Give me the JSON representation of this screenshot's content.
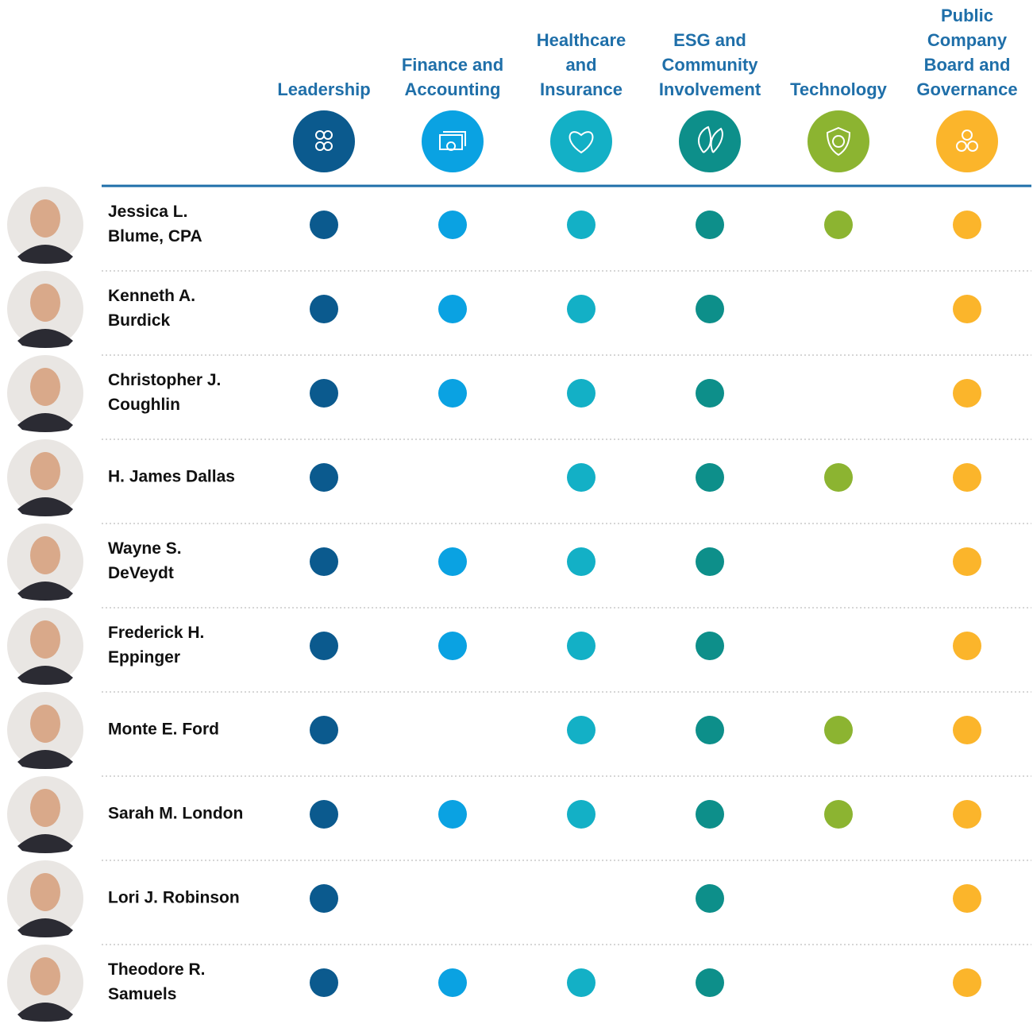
{
  "columns": [
    {
      "label_lines": [
        "Leadership"
      ],
      "color": "#0b5a8e"
    },
    {
      "label_lines": [
        "Finance and",
        "Accounting"
      ],
      "color": "#0aa2e2"
    },
    {
      "label_lines": [
        "Healthcare",
        "and",
        "Insurance"
      ],
      "color": "#13b0c6"
    },
    {
      "label_lines": [
        "ESG and",
        "Community",
        "Involvement"
      ],
      "color": "#0d8f8a"
    },
    {
      "label_lines": [
        "Technology"
      ],
      "color": "#8cb431"
    },
    {
      "label_lines": [
        "Public",
        "Company",
        "Board and",
        "Governance"
      ],
      "color": "#fbb52b"
    }
  ],
  "rows": [
    {
      "name_lines": [
        "Jessica L.",
        "Blume, CPA"
      ],
      "skills": [
        true,
        true,
        true,
        true,
        true,
        true
      ]
    },
    {
      "name_lines": [
        "Kenneth A.",
        "Burdick"
      ],
      "skills": [
        true,
        true,
        true,
        true,
        false,
        true
      ]
    },
    {
      "name_lines": [
        "Christopher J.",
        "Coughlin"
      ],
      "skills": [
        true,
        true,
        true,
        true,
        false,
        true
      ]
    },
    {
      "name_lines": [
        "H. James Dallas"
      ],
      "skills": [
        true,
        false,
        true,
        true,
        true,
        true
      ]
    },
    {
      "name_lines": [
        "Wayne S.",
        "DeVeydt"
      ],
      "skills": [
        true,
        true,
        true,
        true,
        false,
        true
      ]
    },
    {
      "name_lines": [
        "Frederick H.",
        "Eppinger"
      ],
      "skills": [
        true,
        true,
        true,
        true,
        false,
        true
      ]
    },
    {
      "name_lines": [
        "Monte E. Ford"
      ],
      "skills": [
        true,
        false,
        true,
        true,
        true,
        true
      ]
    },
    {
      "name_lines": [
        "Sarah M. London"
      ],
      "skills": [
        true,
        true,
        true,
        true,
        true,
        true
      ]
    },
    {
      "name_lines": [
        "Lori J. Robinson"
      ],
      "skills": [
        true,
        false,
        false,
        true,
        false,
        true
      ]
    },
    {
      "name_lines": [
        "Theodore R.",
        "Samuels"
      ],
      "skills": [
        true,
        true,
        true,
        true,
        false,
        true
      ]
    }
  ]
}
